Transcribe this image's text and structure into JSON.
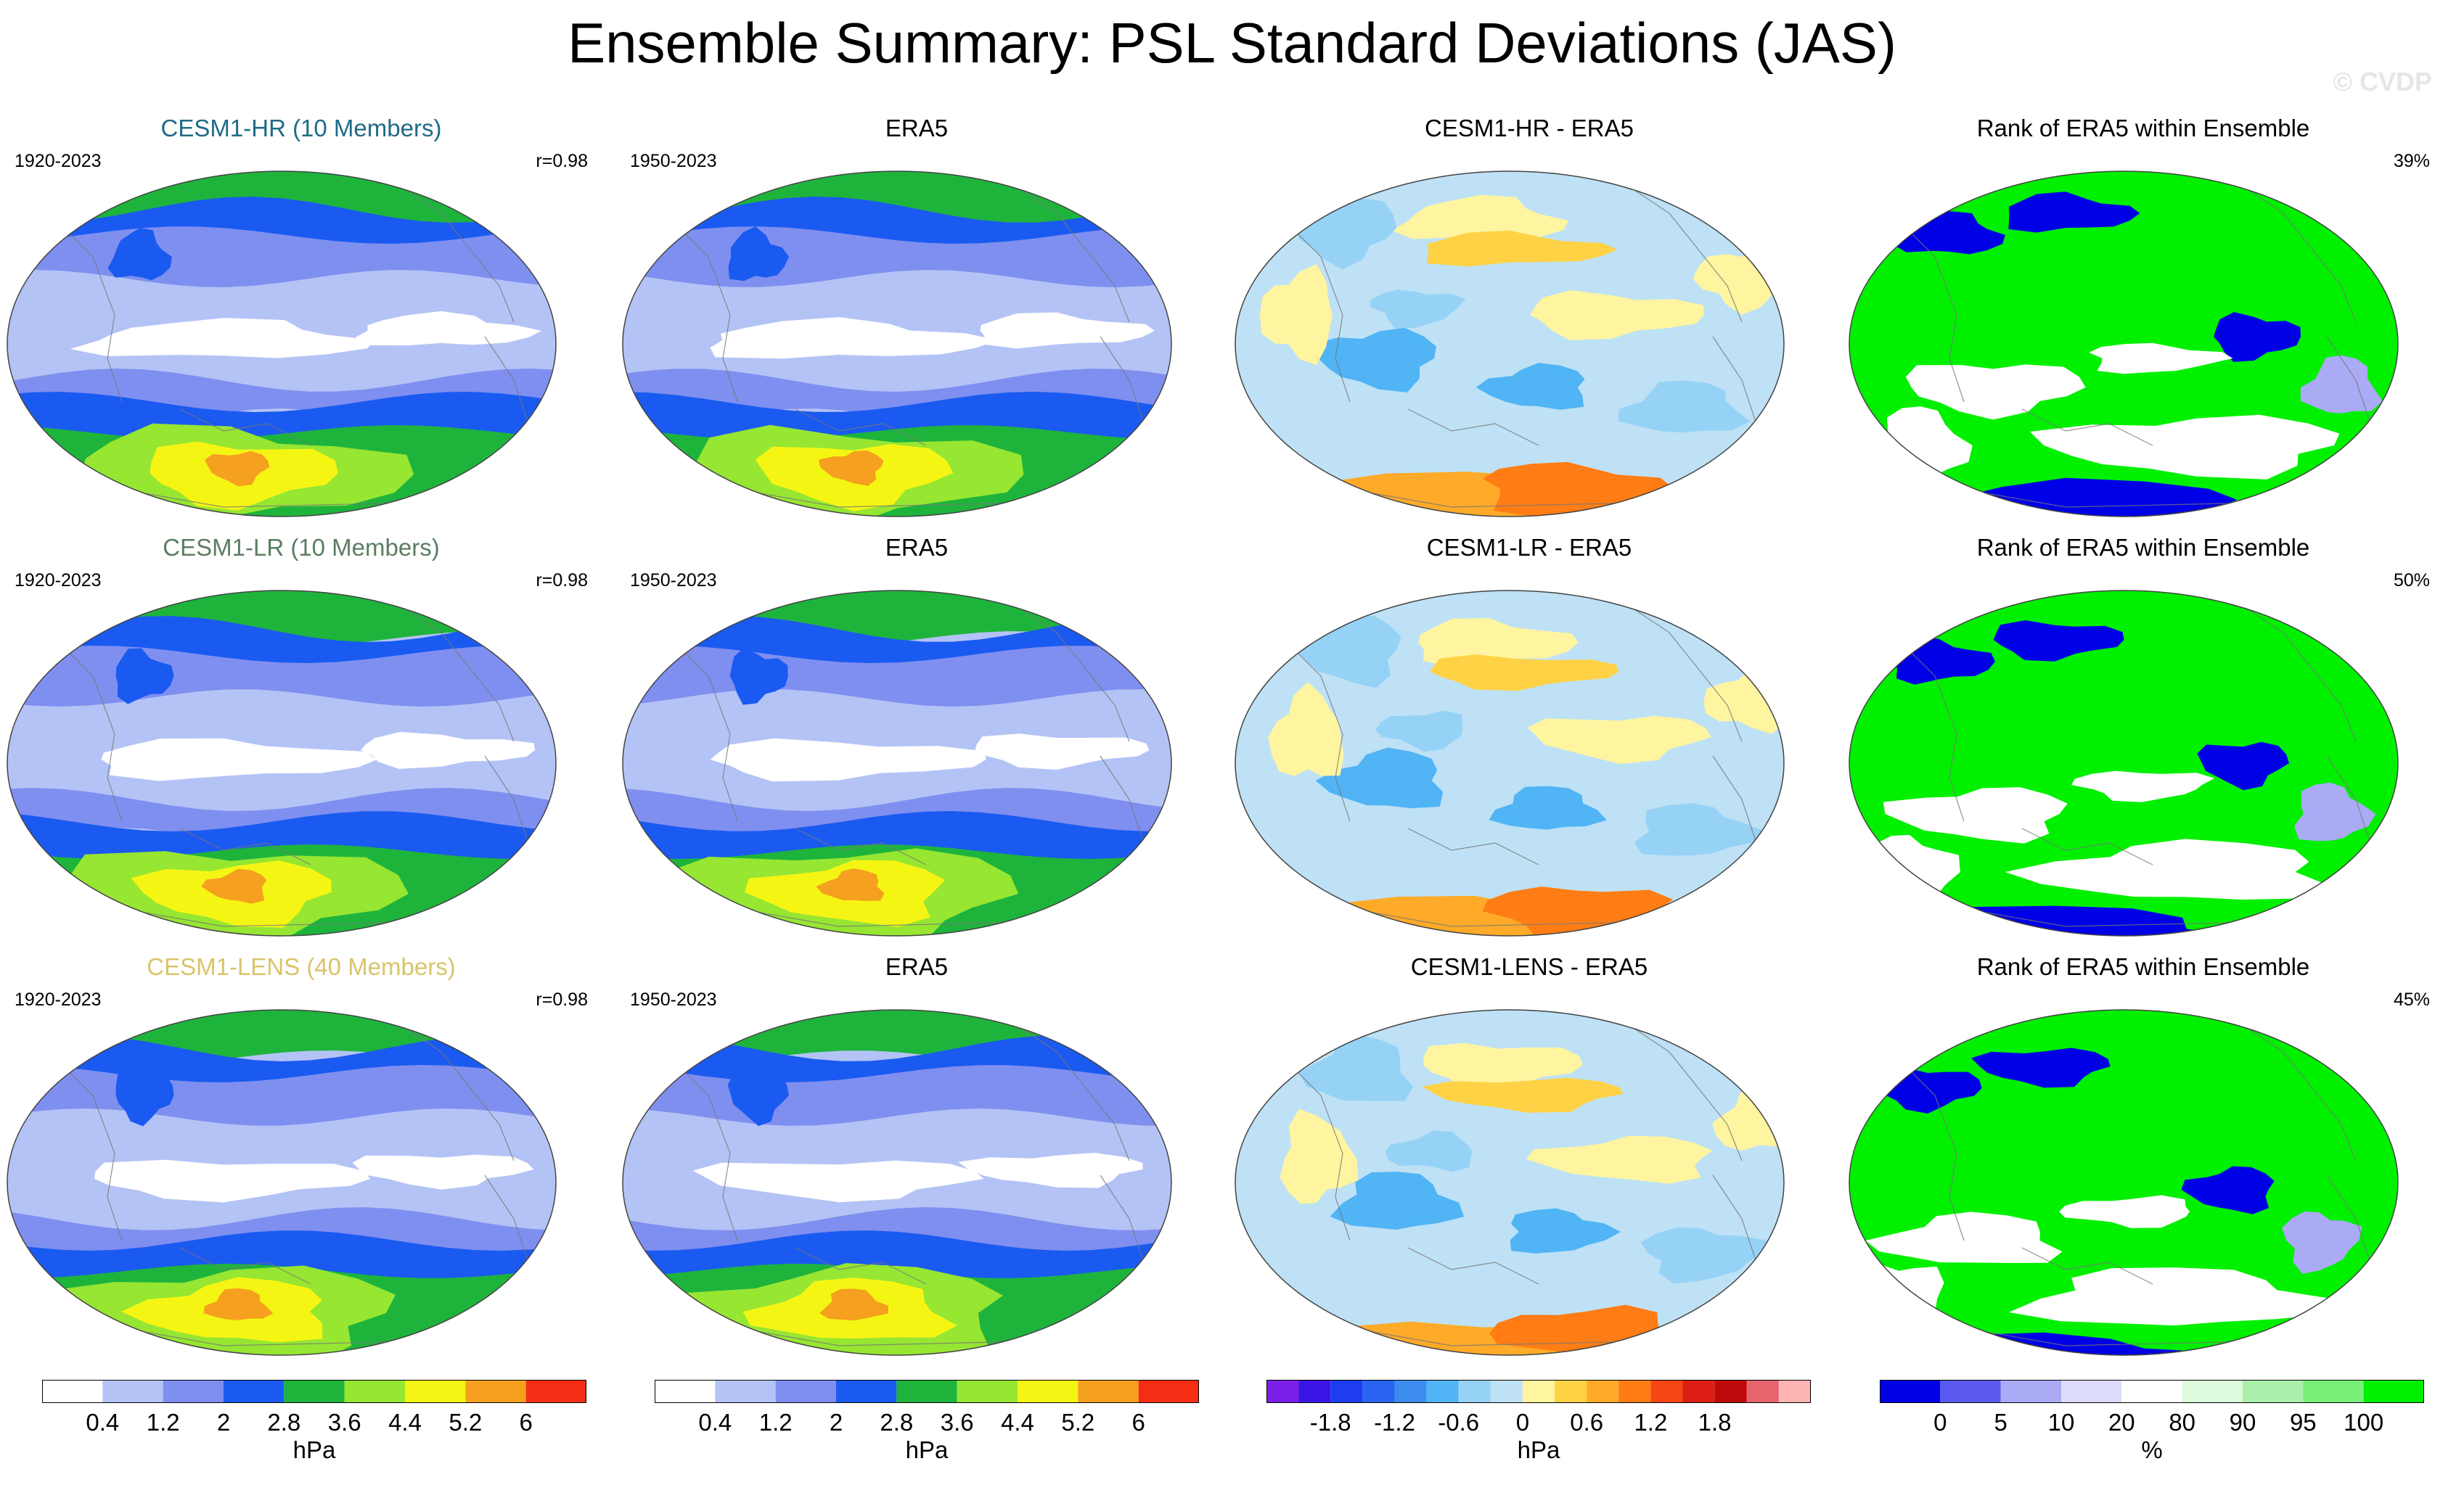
{
  "title": "Ensemble Summary: PSL Standard Deviations (JAS)",
  "watermark": "© CVDP",
  "colors": {
    "model_hr": "#1f6b87",
    "model_lr": "#5b7d62",
    "model_lens": "#d9c46a"
  },
  "rows": [
    {
      "model": {
        "title": "CESM1-HR (10 Members)",
        "years": "1920-2023",
        "corr": "r=0.98"
      },
      "obs": {
        "title": "ERA5",
        "years": "1950-2023"
      },
      "diff": {
        "title": "CESM1-HR - ERA5"
      },
      "rank": {
        "title": "Rank of ERA5 within Ensemble",
        "pct": "39%"
      }
    },
    {
      "model": {
        "title": "CESM1-LR (10 Members)",
        "years": "1920-2023",
        "corr": "r=0.98"
      },
      "obs": {
        "title": "ERA5",
        "years": "1950-2023"
      },
      "diff": {
        "title": "CESM1-LR - ERA5"
      },
      "rank": {
        "title": "Rank of ERA5 within Ensemble",
        "pct": "50%"
      }
    },
    {
      "model": {
        "title": "CESM1-LENS (40 Members)",
        "years": "1920-2023",
        "corr": "r=0.98"
      },
      "obs": {
        "title": "ERA5",
        "years": "1950-2023"
      },
      "diff": {
        "title": "CESM1-LENS - ERA5"
      },
      "rank": {
        "title": "Rank of ERA5 within Ensemble",
        "pct": "45%"
      }
    }
  ],
  "chart_data": [
    {
      "type": "heatmap",
      "name": "PSL standard deviation (model and ERA5 panels)",
      "unit": "hPa",
      "levels": [
        0.4,
        1.2,
        2,
        2.8,
        3.6,
        4.4,
        5.2,
        6
      ],
      "tick_labels": [
        "0.4",
        "1.2",
        "2",
        "2.8",
        "3.6",
        "4.4",
        "5.2",
        "6"
      ],
      "colors": [
        "#ffffff",
        "#b4c3f5",
        "#7f8ff0",
        "#1a5af0",
        "#1eb43c",
        "#96e632",
        "#f5f514",
        "#f5a01e",
        "#f52d14"
      ]
    },
    {
      "type": "heatmap",
      "name": "Difference (model minus ERA5)",
      "unit": "hPa",
      "levels": [
        -2.1,
        -1.8,
        -1.5,
        -1.2,
        -0.9,
        -0.6,
        -0.3,
        0,
        0.3,
        0.6,
        0.9,
        1.2,
        1.5,
        1.8,
        2.1
      ],
      "tick_labels": [
        "-1.8",
        "-1.2",
        "-0.6",
        "0",
        "0.6",
        "1.2",
        "1.8"
      ],
      "tick_values": [
        -1.8,
        -1.2,
        -0.6,
        0,
        0.6,
        1.2,
        1.8
      ],
      "colors": [
        "#7a1ee8",
        "#3c14e6",
        "#1e3cf0",
        "#2864f0",
        "#3c8cf0",
        "#50b4f5",
        "#96d2f5",
        "#bee1f5",
        "#fff5a0",
        "#ffd246",
        "#ffaa28",
        "#ff7d14",
        "#f54614",
        "#dc1e14",
        "#be0a0a",
        "#e6646e",
        "#ffb4b4"
      ]
    },
    {
      "type": "heatmap",
      "name": "Rank of ERA5 within ensemble",
      "unit": "%",
      "levels": [
        0,
        5,
        10,
        20,
        80,
        90,
        95,
        100
      ],
      "tick_labels": [
        "0",
        "5",
        "10",
        "20",
        "80",
        "90",
        "95",
        "100"
      ],
      "colors": [
        "#0000e6",
        "#5a5af0",
        "#aaaaf5",
        "#dcdcfa",
        "#ffffff",
        "#dcfadc",
        "#aaf0aa",
        "#78f078",
        "#00f000"
      ]
    }
  ]
}
